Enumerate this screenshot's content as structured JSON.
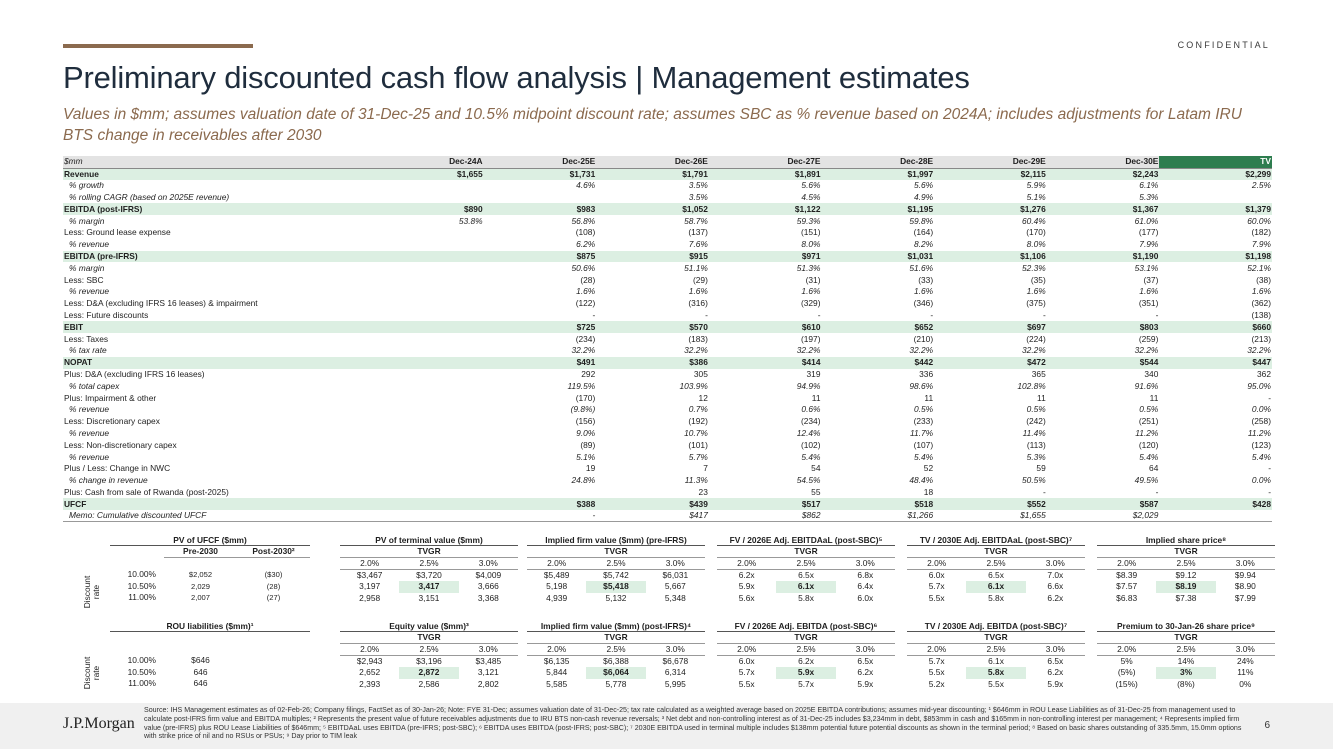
{
  "header": {
    "confidential": "CONFIDENTIAL",
    "title": "Preliminary discounted cash flow analysis | Management estimates",
    "subtitle": "Values in $mm; assumes valuation date of 31-Dec-25 and 10.5% midpoint discount rate; assumes SBC as % revenue based on 2024A; includes adjustments for Latam IRU BTS change in receivables after 2030"
  },
  "colors": {
    "accent": "#8b6a4e",
    "tv_green": "#2e7d4f",
    "highlight": "#dcefe2",
    "title": "#1f2d3d"
  },
  "dcf": {
    "columns": [
      "$mm",
      "Dec-24A",
      "Dec-25E",
      "Dec-26E",
      "Dec-27E",
      "Dec-28E",
      "Dec-29E",
      "Dec-30E",
      "TV"
    ],
    "rows": [
      {
        "style": "key",
        "cells": [
          "Revenue",
          "$1,655",
          "$1,731",
          "$1,791",
          "$1,891",
          "$1,997",
          "$2,115",
          "$2,243",
          "$2,299"
        ]
      },
      {
        "style": "ital",
        "cells": [
          "% growth",
          "",
          "4.6%",
          "3.5%",
          "5.6%",
          "5.6%",
          "5.9%",
          "6.1%",
          "2.5%"
        ]
      },
      {
        "style": "ital",
        "cells": [
          "% rolling CAGR (based on 2025E revenue)",
          "",
          "",
          "3.5%",
          "4.5%",
          "4.9%",
          "5.1%",
          "5.3%",
          ""
        ]
      },
      {
        "style": "key",
        "cells": [
          "EBITDA (post-IFRS)",
          "$890",
          "$983",
          "$1,052",
          "$1,122",
          "$1,195",
          "$1,276",
          "$1,367",
          "$1,379"
        ]
      },
      {
        "style": "ital",
        "cells": [
          "% margin",
          "53.8%",
          "56.8%",
          "58.7%",
          "59.3%",
          "59.8%",
          "60.4%",
          "61.0%",
          "60.0%"
        ]
      },
      {
        "style": "",
        "cells": [
          "Less: Ground lease expense",
          "",
          "(108)",
          "(137)",
          "(151)",
          "(164)",
          "(170)",
          "(177)",
          "(182)"
        ]
      },
      {
        "style": "ital",
        "cells": [
          "% revenue",
          "",
          "6.2%",
          "7.6%",
          "8.0%",
          "8.2%",
          "8.0%",
          "7.9%",
          "7.9%"
        ]
      },
      {
        "style": "key",
        "cells": [
          "EBITDA (pre-IFRS)",
          "",
          "$875",
          "$915",
          "$971",
          "$1,031",
          "$1,106",
          "$1,190",
          "$1,198"
        ]
      },
      {
        "style": "ital",
        "cells": [
          "% margin",
          "",
          "50.6%",
          "51.1%",
          "51.3%",
          "51.6%",
          "52.3%",
          "53.1%",
          "52.1%"
        ]
      },
      {
        "style": "",
        "cells": [
          "Less: SBC",
          "",
          "(28)",
          "(29)",
          "(31)",
          "(33)",
          "(35)",
          "(37)",
          "(38)"
        ]
      },
      {
        "style": "ital",
        "cells": [
          "% revenue",
          "",
          "1.6%",
          "1.6%",
          "1.6%",
          "1.6%",
          "1.6%",
          "1.6%",
          "1.6%"
        ]
      },
      {
        "style": "",
        "cells": [
          "Less: D&A (excluding IFRS 16 leases) & impairment",
          "",
          "(122)",
          "(316)",
          "(329)",
          "(346)",
          "(375)",
          "(351)",
          "(362)"
        ]
      },
      {
        "style": "",
        "cells": [
          "Less: Future discounts",
          "",
          "-",
          "-",
          "-",
          "-",
          "-",
          "-",
          "(138)"
        ]
      },
      {
        "style": "key",
        "cells": [
          "EBIT",
          "",
          "$725",
          "$570",
          "$610",
          "$652",
          "$697",
          "$803",
          "$660"
        ]
      },
      {
        "style": "",
        "cells": [
          "Less: Taxes",
          "",
          "(234)",
          "(183)",
          "(197)",
          "(210)",
          "(224)",
          "(259)",
          "(213)"
        ]
      },
      {
        "style": "ital",
        "cells": [
          "% tax rate",
          "",
          "32.2%",
          "32.2%",
          "32.2%",
          "32.2%",
          "32.2%",
          "32.2%",
          "32.2%"
        ]
      },
      {
        "style": "key",
        "cells": [
          "NOPAT",
          "",
          "$491",
          "$386",
          "$414",
          "$442",
          "$472",
          "$544",
          "$447"
        ]
      },
      {
        "style": "",
        "cells": [
          "Plus: D&A (excluding IFRS 16 leases)",
          "",
          "292",
          "305",
          "319",
          "336",
          "365",
          "340",
          "362"
        ]
      },
      {
        "style": "ital",
        "cells": [
          "% total capex",
          "",
          "119.5%",
          "103.9%",
          "94.9%",
          "98.6%",
          "102.8%",
          "91.6%",
          "95.0%"
        ]
      },
      {
        "style": "",
        "cells": [
          "Plus: Impairment & other",
          "",
          "(170)",
          "12",
          "11",
          "11",
          "11",
          "11",
          "-"
        ]
      },
      {
        "style": "ital",
        "cells": [
          "% revenue",
          "",
          "(9.8%)",
          "0.7%",
          "0.6%",
          "0.5%",
          "0.5%",
          "0.5%",
          "0.0%"
        ]
      },
      {
        "style": "",
        "cells": [
          "Less: Discretionary capex",
          "",
          "(156)",
          "(192)",
          "(234)",
          "(233)",
          "(242)",
          "(251)",
          "(258)"
        ]
      },
      {
        "style": "ital",
        "cells": [
          "% revenue",
          "",
          "9.0%",
          "10.7%",
          "12.4%",
          "11.7%",
          "11.4%",
          "11.2%",
          "11.2%"
        ]
      },
      {
        "style": "",
        "cells": [
          "Less: Non-discretionary capex",
          "",
          "(89)",
          "(101)",
          "(102)",
          "(107)",
          "(113)",
          "(120)",
          "(123)"
        ]
      },
      {
        "style": "ital",
        "cells": [
          "% revenue",
          "",
          "5.1%",
          "5.7%",
          "5.4%",
          "5.4%",
          "5.3%",
          "5.4%",
          "5.4%"
        ]
      },
      {
        "style": "",
        "cells": [
          "Plus / Less: Change in NWC",
          "",
          "19",
          "7",
          "54",
          "52",
          "59",
          "64",
          "-"
        ]
      },
      {
        "style": "ital",
        "cells": [
          "% change in revenue",
          "",
          "24.8%",
          "11.3%",
          "54.5%",
          "48.4%",
          "50.5%",
          "49.5%",
          "0.0%"
        ]
      },
      {
        "style": "",
        "cells": [
          "Plus: Cash from sale of Rwanda (post-2025)",
          "",
          "",
          "23",
          "55",
          "18",
          "-",
          "-",
          "-"
        ]
      },
      {
        "style": "key",
        "cells": [
          "UFCF",
          "",
          "$388",
          "$439",
          "$517",
          "$518",
          "$552",
          "$587",
          "$428"
        ]
      },
      {
        "style": "ital last",
        "cells": [
          "Memo: Cumulative discounted UFCF",
          "",
          "-",
          "$417",
          "$862",
          "$1,266",
          "$1,655",
          "$2,029",
          ""
        ]
      }
    ]
  },
  "discount_label": "Discount rate",
  "rates": [
    "10.00%",
    "10.50%",
    "11.00%"
  ],
  "tvgr_label": "TVGR",
  "tvgr": [
    "2.0%",
    "2.5%",
    "3.0%"
  ],
  "pv_ufcf": {
    "title": "PV of UFCF ($mm)",
    "col1": "Pre-2030",
    "col2": "Post-2030²",
    "rows": [
      [
        "$2,052",
        "($30)"
      ],
      [
        "2,029",
        "(28)"
      ],
      [
        "2,007",
        "(27)"
      ]
    ]
  },
  "rou": {
    "title": "ROU liabilities ($mm)¹",
    "rows": [
      "$646",
      "646",
      "646"
    ]
  },
  "grids_top": [
    {
      "title": "PV of terminal value ($mm)",
      "rows": [
        [
          "$3,467",
          "$3,720",
          "$4,009"
        ],
        [
          "3,197",
          "3,417",
          "3,666"
        ],
        [
          "2,958",
          "3,151",
          "3,368"
        ]
      ]
    },
    {
      "title": "Implied firm value ($mm) (pre-IFRS)",
      "rows": [
        [
          "$5,489",
          "$5,742",
          "$6,031"
        ],
        [
          "5,198",
          "$5,418",
          "5,667"
        ],
        [
          "4,939",
          "5,132",
          "5,348"
        ]
      ]
    },
    {
      "title": "FV / 2026E Adj. EBITDAaL (post-SBC)⁵",
      "rows": [
        [
          "6.2x",
          "6.5x",
          "6.8x"
        ],
        [
          "5.9x",
          "6.1x",
          "6.4x"
        ],
        [
          "5.6x",
          "5.8x",
          "6.0x"
        ]
      ]
    },
    {
      "title": "TV / 2030E Adj. EBITDAaL (post-SBC)⁷",
      "rows": [
        [
          "6.0x",
          "6.5x",
          "7.0x"
        ],
        [
          "5.7x",
          "6.1x",
          "6.6x"
        ],
        [
          "5.5x",
          "5.8x",
          "6.2x"
        ]
      ]
    },
    {
      "title": "Implied share price⁸",
      "rows": [
        [
          "$8.39",
          "$9.12",
          "$9.94"
        ],
        [
          "$7.57",
          "$8.19",
          "$8.90"
        ],
        [
          "$6.83",
          "$7.38",
          "$7.99"
        ]
      ]
    }
  ],
  "grids_bottom": [
    {
      "title": "Equity value ($mm)³",
      "rows": [
        [
          "$2,943",
          "$3,196",
          "$3,485"
        ],
        [
          "2,652",
          "2,872",
          "3,121"
        ],
        [
          "2,393",
          "2,586",
          "2,802"
        ]
      ]
    },
    {
      "title": "Implied firm value ($mm) (post-IFRS)⁴",
      "rows": [
        [
          "$6,135",
          "$6,388",
          "$6,678"
        ],
        [
          "5,844",
          "$6,064",
          "6,314"
        ],
        [
          "5,585",
          "5,778",
          "5,995"
        ]
      ]
    },
    {
      "title": "FV / 2026E Adj. EBITDA (post-SBC)⁶",
      "rows": [
        [
          "6.0x",
          "6.2x",
          "6.5x"
        ],
        [
          "5.7x",
          "5.9x",
          "6.2x"
        ],
        [
          "5.5x",
          "5.7x",
          "5.9x"
        ]
      ]
    },
    {
      "title": "TV / 2030E Adj. EBITDA (post-SBC)⁷",
      "rows": [
        [
          "5.7x",
          "6.1x",
          "6.5x"
        ],
        [
          "5.5x",
          "5.8x",
          "6.2x"
        ],
        [
          "5.2x",
          "5.5x",
          "5.9x"
        ]
      ]
    },
    {
      "title": "Premium to 30-Jan-26 share price⁹",
      "rows": [
        [
          "5%",
          "14%",
          "24%"
        ],
        [
          "(5%)",
          "3%",
          "11%"
        ],
        [
          "(15%)",
          "(8%)",
          "0%"
        ]
      ]
    }
  ],
  "footer": {
    "logo": "J.P.Morgan",
    "source": "Source: IHS Management estimates as of 02-Feb-26; Company filings, FactSet as of 30-Jan-26; Note: FYE 31-Dec; assumes valuation date of 31-Dec-25; tax rate calculated as a weighted average based on 2025E EBITDA contributions; assumes mid-year discounting; ¹ $646mm in ROU Lease Liabilities as of 31-Dec-25 from management used to calculate post-IFRS firm value and EBITDA multiples; ² Represents the present value of future receivables adjustments due to IRU BTS non-cash revenue reversals; ³ Net debt and non-controlling interest as of 31-Dec-25 includes $3,234mm in debt, $853mm in cash and $165mm in non-controlling interest per management; ⁴ Represents implied firm value (pre-IFRS) plus ROU Lease Liabilities of $646mm; ⁵ EBITDAaL uses EBITDA (pre-IFRS; post-SBC); ⁶ EBITDA uses EBITDA (post-IFRS; post-SBC); ⁷ 2030E EBITDA used in terminal multiple includes $138mm potential future potential discounts as shown in the terminal period; ⁸ Based on basic shares outstanding of 335.5mm, 15.0mm options with strike price of nil and no RSUs or PSUs; ⁹ Day prior to TIM leak",
    "page": "6"
  }
}
